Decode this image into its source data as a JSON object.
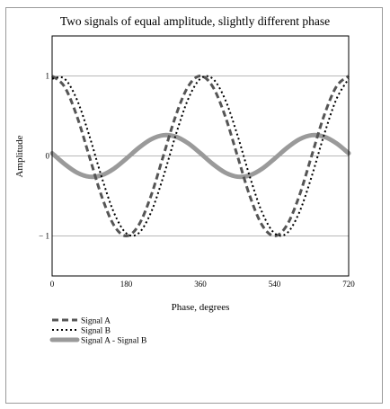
{
  "chart_data": {
    "type": "line",
    "title": "Two signals of equal amplitude, slightly different phase",
    "xlabel": "Phase, degrees",
    "ylabel": "Amplitude",
    "xlim": [
      0,
      720
    ],
    "ylim": [
      -1.5,
      1.5
    ],
    "x_ticks": [
      0,
      180,
      360,
      540,
      720
    ],
    "y_ticks": [
      -1,
      0,
      1
    ],
    "x_tick_labels": [
      "0",
      "180",
      "360",
      "540",
      "720"
    ],
    "y_tick_labels": [
      "− 1",
      "0",
      "1"
    ],
    "grid": "horizontal at y ticks",
    "legend_position": "bottom-left, below chart",
    "x": [
      0,
      30,
      60,
      90,
      120,
      150,
      180,
      210,
      240,
      270,
      300,
      330,
      360,
      390,
      420,
      450,
      480,
      510,
      540,
      570,
      600,
      630,
      660,
      690,
      720
    ],
    "series": [
      {
        "name": "Signal A",
        "style": "dashed",
        "color": "#555555",
        "values": [
          1.0,
          0.866,
          0.5,
          0.0,
          -0.5,
          -0.866,
          -1.0,
          -0.866,
          -0.5,
          0.0,
          0.5,
          0.866,
          1.0,
          0.866,
          0.5,
          0.0,
          -0.5,
          -0.866,
          -1.0,
          -0.866,
          -0.5,
          0.0,
          0.5,
          0.866,
          1.0
        ]
      },
      {
        "name": "Signal B",
        "style": "dotted",
        "color": "#000000",
        "values": [
          0.966,
          0.966,
          0.707,
          0.259,
          -0.259,
          -0.707,
          -0.966,
          -0.966,
          -0.707,
          -0.259,
          0.259,
          0.707,
          0.966,
          0.966,
          0.707,
          0.259,
          -0.259,
          -0.707,
          -0.966,
          -0.966,
          -0.707,
          -0.259,
          0.259,
          0.707,
          0.966
        ]
      },
      {
        "name": "Signal A - Signal B",
        "style": "thick",
        "color": "#9a9a9a",
        "values": [
          0.034,
          -0.1,
          -0.207,
          -0.259,
          -0.241,
          -0.159,
          -0.034,
          0.1,
          0.207,
          0.259,
          0.241,
          0.159,
          0.034,
          -0.1,
          -0.207,
          -0.259,
          -0.241,
          -0.159,
          -0.034,
          0.1,
          0.207,
          0.259,
          0.241,
          0.159,
          0.034
        ]
      }
    ]
  }
}
